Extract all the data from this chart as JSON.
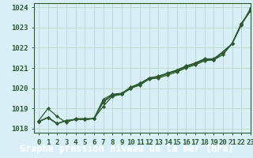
{
  "title": "Graphe pression niveau de la mer (hPa)",
  "bg_color": "#c8e8d4",
  "plot_bg_color": "#d8eff8",
  "grid_color": "#b8d8c8",
  "line_color": "#2d5a2d",
  "marker_color": "#2d5a2d",
  "xlim": [
    -0.5,
    23
  ],
  "ylim": [
    1017.8,
    1024.2
  ],
  "xtick_values": [
    0,
    1,
    2,
    3,
    4,
    5,
    6,
    7,
    8,
    9,
    10,
    11,
    12,
    13,
    14,
    15,
    16,
    17,
    18,
    19,
    20,
    21,
    22,
    23
  ],
  "xtick_labels": [
    "0",
    "1",
    "2",
    "3",
    "4",
    "5",
    "6",
    "7",
    "8",
    "9",
    "10",
    "11",
    "12",
    "13",
    "14",
    "15",
    "16",
    "17",
    "18",
    "19",
    "20",
    "21",
    "22",
    "23"
  ],
  "ytick_values": [
    1018,
    1019,
    1020,
    1021,
    1022,
    1023,
    1024
  ],
  "series": [
    [
      1018.4,
      1019.0,
      1018.6,
      1018.3,
      1018.5,
      1018.5,
      1018.5,
      1019.1,
      1019.6,
      1019.7,
      1020.0,
      1020.15,
      1020.45,
      1020.5,
      1020.65,
      1020.8,
      1021.0,
      1021.15,
      1021.35,
      1021.4,
      1021.65,
      1022.2,
      1023.1,
      1023.95
    ],
    [
      1018.35,
      1018.55,
      1018.25,
      1018.4,
      1018.45,
      1018.45,
      1018.5,
      1019.45,
      1019.7,
      1019.75,
      1020.05,
      1020.25,
      1020.5,
      1020.6,
      1020.75,
      1020.9,
      1021.1,
      1021.25,
      1021.45,
      1021.45,
      1021.8,
      1022.2,
      1023.2,
      1023.85
    ],
    [
      1018.35,
      1018.55,
      1018.25,
      1018.4,
      1018.45,
      1018.45,
      1018.5,
      1019.3,
      1019.65,
      1019.7,
      1020.0,
      1020.2,
      1020.5,
      1020.55,
      1020.72,
      1020.85,
      1021.05,
      1021.2,
      1021.4,
      1021.4,
      1021.75,
      1022.2,
      1023.15,
      1023.82
    ],
    [
      1018.35,
      1018.55,
      1018.25,
      1018.4,
      1018.45,
      1018.45,
      1018.5,
      1019.35,
      1019.67,
      1019.72,
      1020.02,
      1020.22,
      1020.5,
      1020.57,
      1020.73,
      1020.87,
      1021.07,
      1021.22,
      1021.42,
      1021.42,
      1021.77,
      1022.2,
      1023.17,
      1023.83
    ]
  ],
  "title_fontsize": 8.5,
  "tick_fontsize": 6.5,
  "title_bg": "#2d5a2d",
  "title_fg": "#ffffff"
}
